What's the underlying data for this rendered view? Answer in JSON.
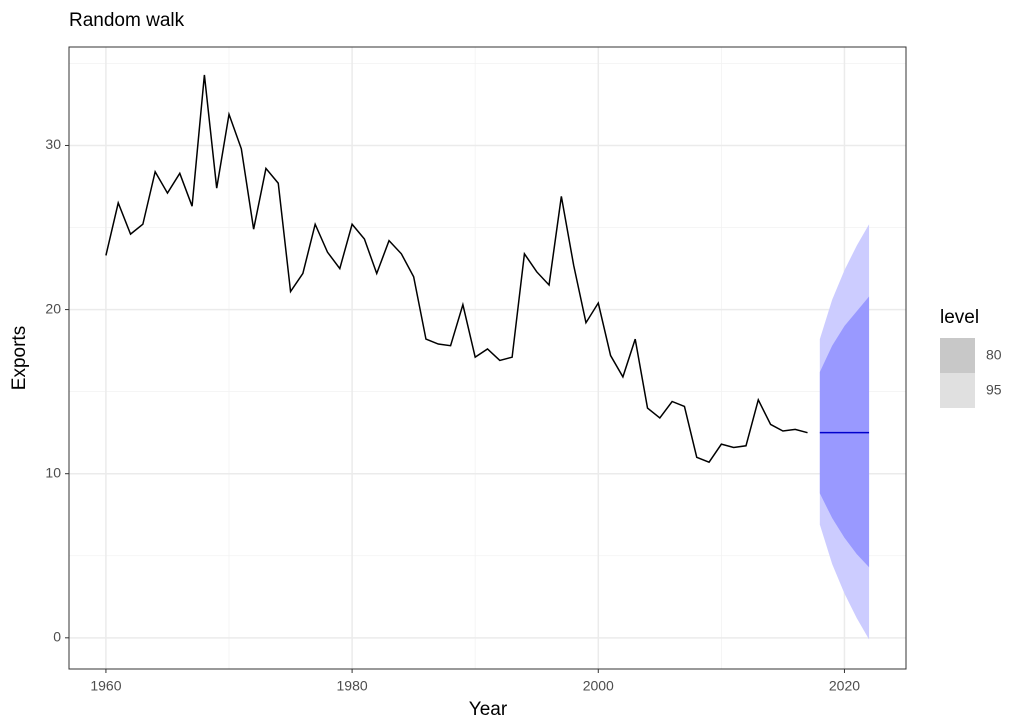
{
  "chart_data": {
    "type": "line",
    "title": "Random walk",
    "xlabel": "Year",
    "ylabel": "Exports",
    "x": [
      1960,
      1961,
      1962,
      1963,
      1964,
      1965,
      1966,
      1967,
      1968,
      1969,
      1970,
      1971,
      1972,
      1973,
      1974,
      1975,
      1976,
      1977,
      1978,
      1979,
      1980,
      1981,
      1982,
      1983,
      1984,
      1985,
      1986,
      1987,
      1988,
      1989,
      1990,
      1991,
      1992,
      1993,
      1994,
      1995,
      1996,
      1997,
      1998,
      1999,
      2000,
      2001,
      2002,
      2003,
      2004,
      2005,
      2006,
      2007,
      2008,
      2009,
      2010,
      2011,
      2012,
      2013,
      2014,
      2015,
      2016,
      2017
    ],
    "values": [
      23.3,
      26.5,
      24.6,
      25.2,
      28.4,
      27.1,
      28.3,
      26.3,
      34.3,
      27.4,
      31.9,
      29.8,
      24.9,
      28.6,
      27.7,
      21.1,
      22.2,
      25.2,
      23.5,
      22.5,
      25.2,
      24.3,
      22.2,
      24.2,
      23.4,
      22.0,
      18.2,
      17.9,
      17.8,
      20.3,
      17.1,
      17.6,
      16.9,
      17.1,
      23.4,
      22.3,
      21.5,
      26.9,
      22.7,
      19.2,
      20.4,
      17.2,
      15.9,
      18.2,
      14.0,
      13.4,
      14.4,
      14.1,
      11.0,
      10.7,
      11.8,
      11.6,
      11.7,
      14.5,
      13.0,
      12.6,
      12.7,
      12.5
    ],
    "color": "#000000",
    "forecast": {
      "x": [
        2018,
        2019,
        2020,
        2021,
        2022
      ],
      "mean": [
        12.5,
        12.5,
        12.5,
        12.5,
        12.5
      ],
      "color": "#0000cc",
      "intervals": [
        {
          "level": 95,
          "color": "#ccccff",
          "key_color": "#e0e0e0",
          "lower": [
            6.9,
            4.5,
            2.7,
            1.2,
            -0.1
          ],
          "upper": [
            18.2,
            20.6,
            22.4,
            23.9,
            25.2
          ]
        },
        {
          "level": 80,
          "color": "#9999ff",
          "key_color": "#c8c8c8",
          "lower": [
            8.8,
            7.3,
            6.1,
            5.1,
            4.3
          ],
          "upper": [
            16.2,
            17.8,
            19.0,
            19.9,
            20.8
          ]
        }
      ]
    },
    "legend_title": "level",
    "xlim": [
      1957,
      2025
    ],
    "ylim": [
      -1.9,
      36
    ],
    "xticks": [
      1960,
      1980,
      2000,
      2020
    ],
    "yticks": [
      0,
      10,
      20,
      30
    ],
    "minor_xticks": [
      1970,
      1990,
      2010
    ],
    "minor_yticks": [
      5,
      15,
      25,
      35
    ],
    "grid": true
  }
}
